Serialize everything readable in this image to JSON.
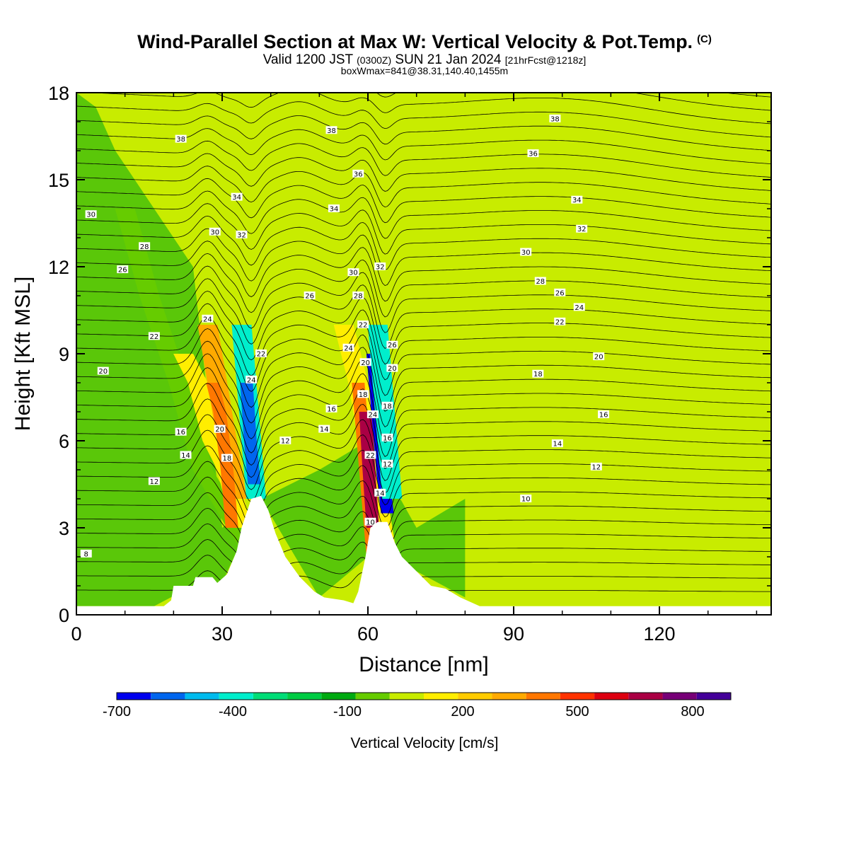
{
  "title": {
    "main": "Wind-Parallel Section at Max W: Vertical Velocity & Pot.Temp.",
    "copyright": "(C)",
    "valid_prefix": "Valid 1200 JST",
    "valid_utc": "(0300Z)",
    "valid_date": "SUN 21 Jan 2024",
    "forecast": "[21hrFcst@1218z]",
    "boxwmax": "boxWmax=841@38.31,140.40,1455m"
  },
  "colors": {
    "background_field": "#c8ec00",
    "terrain": "#ffffff",
    "contour": "#000000"
  },
  "chart_data": {
    "type": "heatmap",
    "xlabel": "Distance [nm]",
    "ylabel": "Height [Kft MSL]",
    "xlim": [
      0,
      143
    ],
    "ylim": [
      0,
      18
    ],
    "x_ticks": [
      0,
      30,
      60,
      90,
      120
    ],
    "y_ticks": [
      0,
      3,
      6,
      9,
      12,
      15,
      18
    ],
    "x_tick_labels": [
      "0",
      "30",
      "60",
      "90",
      "120"
    ],
    "y_tick_labels": [
      "0",
      "3",
      "6",
      "9",
      "12",
      "15",
      "18"
    ],
    "colorbar": {
      "title": "Vertical Velocity [cm/s]",
      "colors": [
        "#0000ee",
        "#0066ee",
        "#00bbee",
        "#00eecc",
        "#00dd77",
        "#00cc44",
        "#00aa11",
        "#66cc00",
        "#c8ec00",
        "#ffee00",
        "#ffcc00",
        "#ffaa00",
        "#ff7700",
        "#ff3300",
        "#dd0011",
        "#aa0044",
        "#770077",
        "#440099"
      ],
      "tick_values": [
        -700,
        -400,
        -100,
        200,
        500,
        800
      ],
      "tick_labels": [
        "-700",
        "-400",
        "-100",
        "200",
        "500",
        "800"
      ]
    },
    "terrain_profile": [
      [
        0,
        0.3
      ],
      [
        18,
        0.3
      ],
      [
        19.5,
        0.5
      ],
      [
        20,
        1.0
      ],
      [
        24,
        1.0
      ],
      [
        24.5,
        1.3
      ],
      [
        28,
        1.3
      ],
      [
        29,
        1.1
      ],
      [
        31,
        1.4
      ],
      [
        33,
        2.2
      ],
      [
        34,
        3.0
      ],
      [
        35,
        3.5
      ],
      [
        36,
        4.0
      ],
      [
        38,
        4.1
      ],
      [
        39.5,
        3.6
      ],
      [
        41,
        2.8
      ],
      [
        43,
        2.0
      ],
      [
        46,
        1.3
      ],
      [
        49,
        0.8
      ],
      [
        51,
        0.6
      ],
      [
        55,
        0.5
      ],
      [
        57,
        0.4
      ],
      [
        58,
        0.8
      ],
      [
        59.5,
        2.0
      ],
      [
        60.5,
        3.0
      ],
      [
        62,
        3.2
      ],
      [
        64,
        3.2
      ],
      [
        65.5,
        2.5
      ],
      [
        67,
        2.0
      ],
      [
        70,
        1.5
      ],
      [
        73,
        1.0
      ],
      [
        76,
        0.9
      ],
      [
        79,
        0.6
      ],
      [
        83,
        0.3
      ],
      [
        143,
        0.3
      ]
    ],
    "shading": [
      {
        "velocity": -100,
        "x": [
          0,
          4,
          8,
          16,
          24,
          30,
          38,
          50,
          60,
          70,
          80
        ],
        "y_low": [
          0.3,
          0.3,
          0.3,
          0.3,
          1.0,
          1.1,
          4.0,
          0.6,
          2.0,
          1.5,
          0.6
        ],
        "y_high": [
          18,
          17.5,
          16,
          14,
          12,
          3,
          4,
          5,
          6,
          3,
          4
        ]
      },
      {
        "velocity": 0,
        "x": [
          10,
          15,
          21,
          26,
          33,
          37
        ],
        "y": [
          14,
          11,
          8,
          5,
          3,
          2
        ]
      },
      {
        "velocity": 200,
        "x": [
          22,
          25,
          28,
          31,
          34
        ],
        "y": [
          9,
          8,
          6,
          5,
          3
        ]
      },
      {
        "velocity": 350,
        "x": [
          27,
          29,
          31,
          33
        ],
        "y": [
          10,
          8,
          6,
          4
        ]
      },
      {
        "velocity": 500,
        "x": [
          28,
          29.5,
          31,
          32
        ],
        "y": [
          8,
          7,
          5,
          3
        ]
      },
      {
        "velocity": -400,
        "x": [
          34,
          35,
          36,
          37
        ],
        "y": [
          10,
          8,
          6,
          4
        ]
      },
      {
        "velocity": -600,
        "x": [
          35,
          35.8,
          36.6
        ],
        "y": [
          8,
          6,
          4.5
        ]
      },
      {
        "velocity": 200,
        "x": [
          55,
          58,
          60,
          62,
          64
        ],
        "y": [
          10,
          8,
          6,
          4,
          2
        ]
      },
      {
        "velocity": 500,
        "x": [
          58,
          59,
          60,
          61
        ],
        "y": [
          8,
          6,
          4,
          2
        ]
      },
      {
        "velocity": 800,
        "x": [
          59.5,
          60.2,
          61
        ],
        "y": [
          7,
          5,
          3
        ]
      },
      {
        "velocity": -700,
        "x": [
          61,
          62,
          63,
          64
        ],
        "y": [
          9,
          7,
          5,
          3.5
        ]
      },
      {
        "velocity": -400,
        "x": [
          62,
          63,
          64,
          65
        ],
        "y": [
          10,
          8,
          6,
          4
        ]
      }
    ],
    "contour_labels": [
      {
        "text": "38",
        "x": 21.5,
        "y": 16.4
      },
      {
        "text": "38",
        "x": 52.5,
        "y": 16.7
      },
      {
        "text": "38",
        "x": 98.5,
        "y": 17.1
      },
      {
        "text": "36",
        "x": 58,
        "y": 15.2
      },
      {
        "text": "36",
        "x": 94,
        "y": 15.9
      },
      {
        "text": "34",
        "x": 33,
        "y": 14.4
      },
      {
        "text": "34",
        "x": 53,
        "y": 14.0
      },
      {
        "text": "34",
        "x": 103,
        "y": 14.3
      },
      {
        "text": "32",
        "x": 34,
        "y": 13.1
      },
      {
        "text": "32",
        "x": 104,
        "y": 13.3
      },
      {
        "text": "32",
        "x": 62.5,
        "y": 12.0
      },
      {
        "text": "30",
        "x": 3,
        "y": 13.8
      },
      {
        "text": "30",
        "x": 28.5,
        "y": 13.2
      },
      {
        "text": "30",
        "x": 57,
        "y": 11.8
      },
      {
        "text": "30",
        "x": 92.5,
        "y": 12.5
      },
      {
        "text": "28",
        "x": 14,
        "y": 12.7
      },
      {
        "text": "28",
        "x": 58,
        "y": 11.0
      },
      {
        "text": "28",
        "x": 95.5,
        "y": 11.5
      },
      {
        "text": "26",
        "x": 9.5,
        "y": 11.9
      },
      {
        "text": "26",
        "x": 48,
        "y": 11.0
      },
      {
        "text": "26",
        "x": 99.5,
        "y": 11.1
      },
      {
        "text": "26",
        "x": 65,
        "y": 9.3
      },
      {
        "text": "24",
        "x": 27,
        "y": 10.2
      },
      {
        "text": "24",
        "x": 56,
        "y": 9.2
      },
      {
        "text": "24",
        "x": 103.5,
        "y": 10.6
      },
      {
        "text": "24",
        "x": 36,
        "y": 8.1
      },
      {
        "text": "24",
        "x": 61,
        "y": 6.9
      },
      {
        "text": "22",
        "x": 16,
        "y": 9.6
      },
      {
        "text": "22",
        "x": 38,
        "y": 9.0
      },
      {
        "text": "22",
        "x": 59,
        "y": 10.0
      },
      {
        "text": "22",
        "x": 99.5,
        "y": 10.1
      },
      {
        "text": "22",
        "x": 60.5,
        "y": 5.5
      },
      {
        "text": "20",
        "x": 5.5,
        "y": 8.4
      },
      {
        "text": "20",
        "x": 29.5,
        "y": 6.4
      },
      {
        "text": "20",
        "x": 59.5,
        "y": 8.7
      },
      {
        "text": "20",
        "x": 65,
        "y": 8.5
      },
      {
        "text": "20",
        "x": 107.5,
        "y": 8.9
      },
      {
        "text": "18",
        "x": 31,
        "y": 5.4
      },
      {
        "text": "18",
        "x": 59,
        "y": 7.6
      },
      {
        "text": "18",
        "x": 64,
        "y": 7.2
      },
      {
        "text": "18",
        "x": 95,
        "y": 8.3
      },
      {
        "text": "16",
        "x": 21.5,
        "y": 6.3
      },
      {
        "text": "16",
        "x": 52.5,
        "y": 7.1
      },
      {
        "text": "16",
        "x": 64,
        "y": 6.1
      },
      {
        "text": "16",
        "x": 108.5,
        "y": 6.9
      },
      {
        "text": "14",
        "x": 22.5,
        "y": 5.5
      },
      {
        "text": "14",
        "x": 51,
        "y": 6.4
      },
      {
        "text": "14",
        "x": 62.5,
        "y": 4.2
      },
      {
        "text": "14",
        "x": 99,
        "y": 5.9
      },
      {
        "text": "12",
        "x": 16,
        "y": 4.6
      },
      {
        "text": "12",
        "x": 43,
        "y": 6.0
      },
      {
        "text": "12",
        "x": 64,
        "y": 5.2
      },
      {
        "text": "12",
        "x": 107,
        "y": 5.1
      },
      {
        "text": "10",
        "x": 60.5,
        "y": 3.2
      },
      {
        "text": "10",
        "x": 92.5,
        "y": 4.0
      },
      {
        "text": "8",
        "x": 2,
        "y": 2.1
      }
    ]
  }
}
